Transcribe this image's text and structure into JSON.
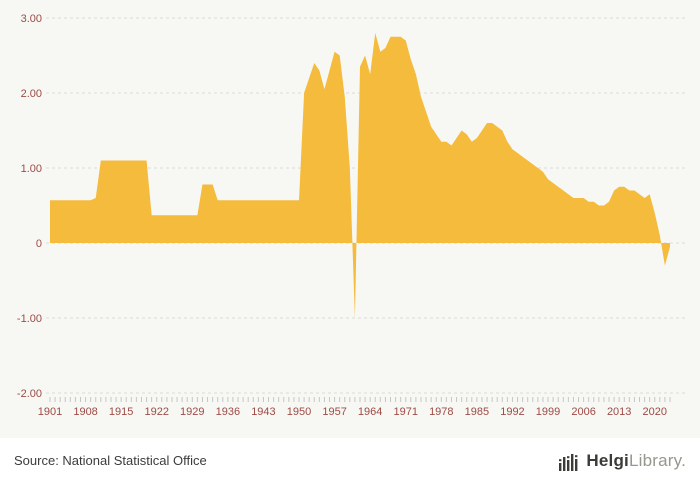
{
  "chart": {
    "source_label": "Source: National Statistical Office",
    "brand": {
      "name_bold": "Helgi",
      "name_light": "Library",
      "suffix": "."
    },
    "chart_data": {
      "type": "area",
      "title": "",
      "xlabel": "",
      "ylabel": "",
      "x_start_year": 1901,
      "x_end_year": 2023,
      "x_tick_interval": 7,
      "x_tick_labels": [
        "1901",
        "1908",
        "1915",
        "1922",
        "1929",
        "1936",
        "1943",
        "1950",
        "1957",
        "1964",
        "1971",
        "1978",
        "1985",
        "1992",
        "1999",
        "2006",
        "2013",
        "2020"
      ],
      "ylim": [
        -2,
        3
      ],
      "y_ticks": [
        3,
        2,
        1,
        0,
        -1,
        -2
      ],
      "y_tick_labels": [
        "3.00",
        "2.00",
        "1.00",
        "0",
        "-1.00",
        "-2.00"
      ],
      "grid": true,
      "legend": "none",
      "area_color": "#F4BB3C",
      "grid_color": "#DBDBDB",
      "tick_color": "#C6C6C6",
      "label_color": "#9E4B45",
      "series": [
        {
          "name": "annual-growth-percent",
          "values": [
            0.57,
            0.57,
            0.57,
            0.57,
            0.57,
            0.57,
            0.57,
            0.57,
            0.57,
            0.6,
            1.1,
            1.1,
            1.1,
            1.1,
            1.1,
            1.1,
            1.1,
            1.1,
            1.1,
            1.1,
            0.37,
            0.37,
            0.37,
            0.37,
            0.37,
            0.37,
            0.37,
            0.37,
            0.37,
            0.37,
            0.78,
            0.78,
            0.78,
            0.57,
            0.57,
            0.57,
            0.57,
            0.57,
            0.57,
            0.57,
            0.57,
            0.57,
            0.57,
            0.57,
            0.57,
            0.57,
            0.57,
            0.57,
            0.57,
            0.57,
            2.0,
            2.2,
            2.4,
            2.3,
            2.05,
            2.3,
            2.55,
            2.5,
            1.95,
            1.0,
            -1.0,
            2.35,
            2.5,
            2.25,
            2.8,
            2.55,
            2.6,
            2.75,
            2.75,
            2.75,
            2.7,
            2.45,
            2.25,
            1.95,
            1.75,
            1.55,
            1.45,
            1.35,
            1.35,
            1.3,
            1.4,
            1.5,
            1.45,
            1.35,
            1.4,
            1.5,
            1.6,
            1.6,
            1.55,
            1.5,
            1.35,
            1.25,
            1.2,
            1.15,
            1.1,
            1.05,
            1.0,
            0.95,
            0.85,
            0.8,
            0.75,
            0.7,
            0.65,
            0.6,
            0.6,
            0.6,
            0.55,
            0.55,
            0.5,
            0.5,
            0.55,
            0.7,
            0.75,
            0.75,
            0.7,
            0.7,
            0.65,
            0.6,
            0.65,
            0.4,
            0.1,
            -0.3,
            -0.05
          ]
        }
      ]
    }
  }
}
